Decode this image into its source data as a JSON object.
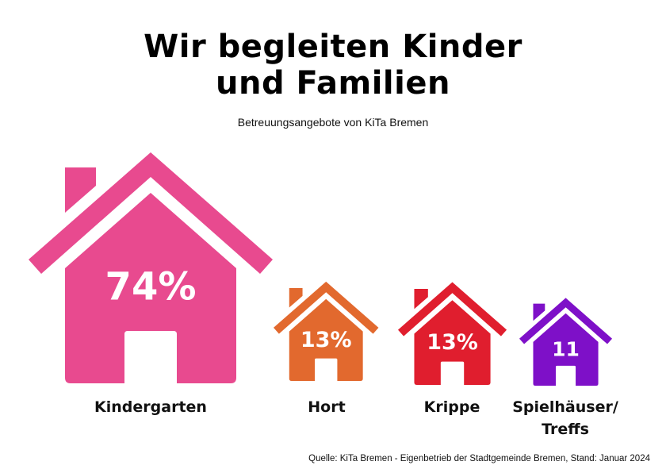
{
  "title_line1": "Wir begleiten Kinder",
  "title_line2": "und Familien",
  "subtitle": "Betreuungsangebote von KiTa Bremen",
  "source": "Quelle: KiTa Bremen - Eigenbetrieb der Stadtgemeinde Bremen, Stand: Januar 2024",
  "chart_data": {
    "type": "bar",
    "style": "house pictograms scaled by value",
    "categories": [
      "Kindergarten",
      "Hort",
      "Krippe",
      "Spielhäuser/ Treffs"
    ],
    "label_lines": [
      [
        "Kindergarten"
      ],
      [
        "Hort"
      ],
      [
        "Krippe"
      ],
      [
        "Spielhäuser/",
        "Treffs"
      ]
    ],
    "values": [
      74,
      13,
      13,
      11
    ],
    "value_labels": [
      "74%",
      "13%",
      "13%",
      "11"
    ],
    "colors": [
      "#E84A8F",
      "#E2692E",
      "#E01E2E",
      "#7E10C8"
    ],
    "title": "Wir begleiten Kinder und Familien",
    "subtitle": "Betreuungsangebote von KiTa Bremen"
  }
}
